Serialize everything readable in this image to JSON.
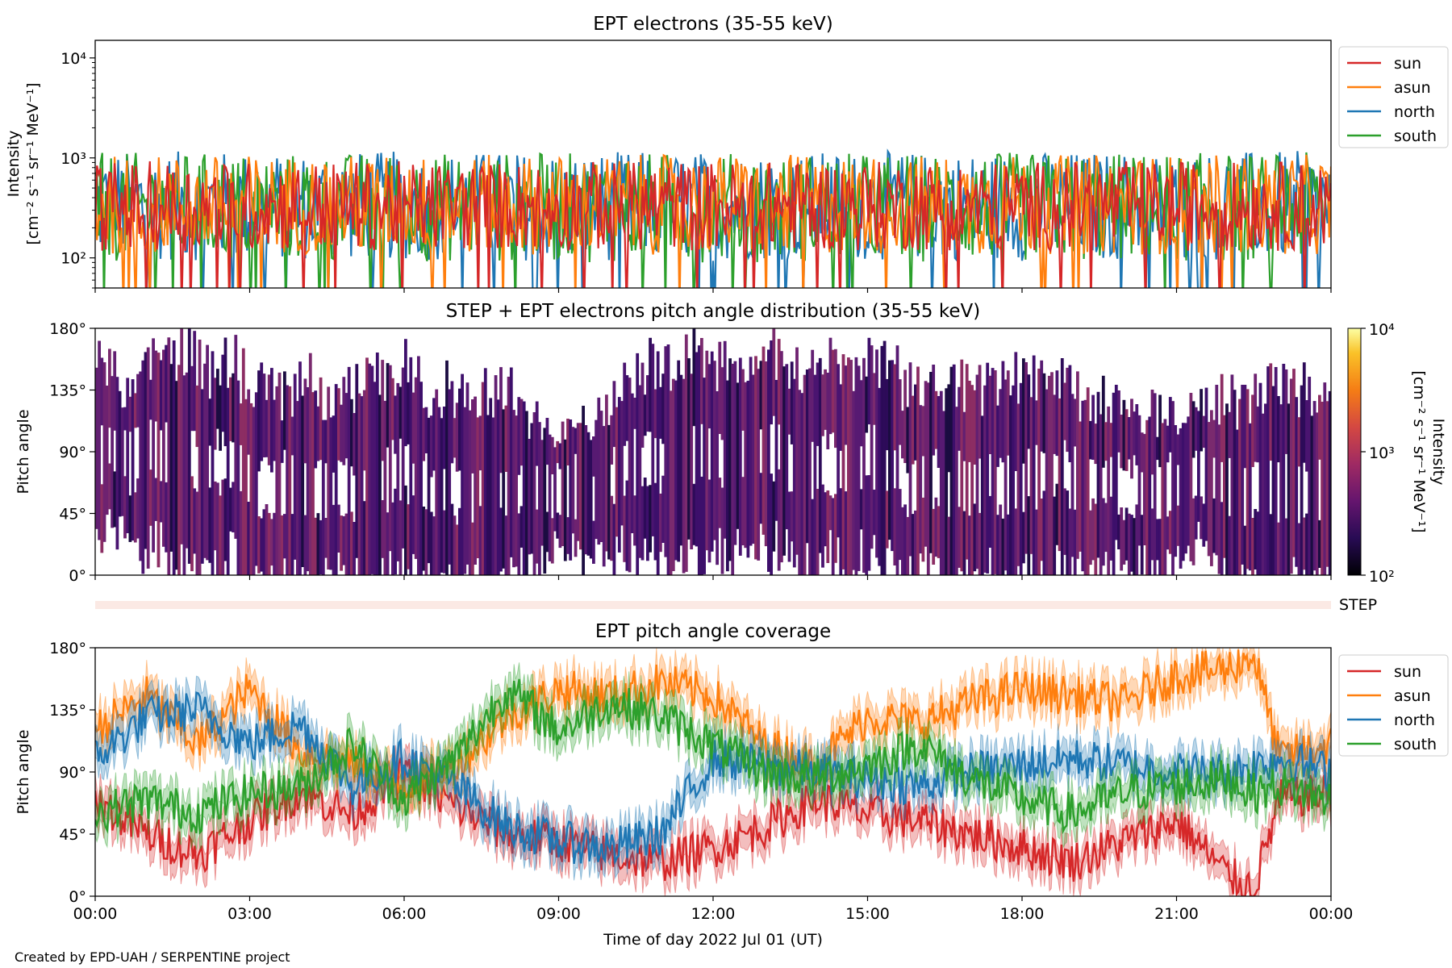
{
  "footer": "Created by EPD-UAH / SERPENTINE project",
  "colors": {
    "sun": "#d62728",
    "asun": "#ff7f0e",
    "north": "#1f77b4",
    "south": "#2ca02c",
    "heat": "#4a1470"
  },
  "chart_data": [
    {
      "type": "line",
      "title": "EPT electrons (35-55 keV)",
      "ylabel": [
        "Intensity",
        "[cm⁻² s⁻¹ sr⁻¹ MeV⁻¹]"
      ],
      "yscale": "log",
      "ylim": [
        50,
        15000
      ],
      "yticks": [
        "10²",
        "10³",
        "10⁴"
      ],
      "xlim": [
        0,
        24
      ],
      "legend": {
        "position": "right-outside-top",
        "entries": [
          "sun",
          "asun",
          "north",
          "south"
        ]
      },
      "series": [
        {
          "name": "north",
          "level": 330,
          "spread": 0.55
        },
        {
          "name": "south",
          "level": 320,
          "spread": 0.55
        },
        {
          "name": "asun",
          "level": 340,
          "spread": 0.5
        },
        {
          "name": "sun",
          "level": 330,
          "spread": 0.45
        }
      ]
    },
    {
      "type": "heatmap",
      "title": "STEP + EPT electrons pitch angle distribution (35-55 keV)",
      "ylabel": "Pitch angle",
      "ylim": [
        0,
        180
      ],
      "yticks": [
        "0°",
        "45°",
        "90°",
        "135°",
        "180°"
      ],
      "xlim": [
        0,
        24
      ],
      "colorbar": {
        "label": [
          "Intensity",
          "[cm⁻² s⁻¹ sr⁻¹ MeV⁻¹]"
        ],
        "scale": "log",
        "range": [
          100,
          10000
        ],
        "ticks": [
          "10²",
          "10³",
          "10⁴"
        ],
        "colormap": "inferno"
      },
      "step_label": "STEP"
    },
    {
      "type": "line",
      "title": "EPT pitch angle coverage",
      "ylabel": "Pitch angle",
      "xlabel": "Time of day 2022 Jul 01 (UT)",
      "ylim": [
        0,
        180
      ],
      "yticks": [
        "0°",
        "45°",
        "90°",
        "135°",
        "180°"
      ],
      "xlim": [
        0,
        24
      ],
      "xticks": [
        "00:00",
        "03:00",
        "06:00",
        "09:00",
        "12:00",
        "15:00",
        "18:00",
        "21:00",
        "00:00"
      ],
      "legend": {
        "position": "right-outside-top",
        "entries": [
          "sun",
          "asun",
          "north",
          "south"
        ]
      },
      "series": [
        {
          "name": "sun",
          "x": [
            0,
            1,
            2,
            3,
            4,
            5,
            6,
            7,
            8,
            9,
            10,
            11,
            12,
            13,
            14,
            15,
            16,
            17,
            18,
            19,
            20,
            21,
            22,
            22.5,
            23,
            24
          ],
          "y": [
            70,
            45,
            30,
            55,
            75,
            60,
            88,
            65,
            45,
            40,
            30,
            25,
            35,
            50,
            70,
            60,
            55,
            45,
            35,
            25,
            40,
            55,
            15,
            5,
            70,
            75
          ]
        },
        {
          "name": "asun",
          "x": [
            0,
            1,
            2,
            3,
            4,
            5,
            6,
            7,
            8,
            9,
            10,
            11,
            12,
            13,
            14,
            15,
            16,
            17,
            18,
            19,
            20,
            21,
            22,
            22.5,
            23,
            24
          ],
          "y": [
            120,
            145,
            110,
            150,
            105,
            95,
            80,
            95,
            130,
            150,
            145,
            155,
            145,
            110,
            95,
            130,
            125,
            140,
            150,
            145,
            140,
            160,
            165,
            175,
            100,
            110
          ]
        },
        {
          "name": "north",
          "x": [
            0,
            1,
            2,
            3,
            4,
            5,
            6,
            7,
            8,
            9,
            10,
            11,
            12,
            13,
            14,
            15,
            16,
            17,
            18,
            19,
            20,
            21,
            22,
            22.5,
            23,
            24
          ],
          "y": [
            100,
            130,
            135,
            110,
            125,
            80,
            100,
            80,
            50,
            40,
            35,
            45,
            100,
            95,
            90,
            85,
            80,
            90,
            95,
            100,
            95,
            90,
            90,
            95,
            100,
            90
          ]
        },
        {
          "name": "south",
          "x": [
            0,
            1,
            2,
            3,
            4,
            5,
            6,
            7,
            8,
            9,
            10,
            11,
            12,
            13,
            14,
            15,
            16,
            17,
            18,
            19,
            20,
            21,
            22,
            22.5,
            23,
            24
          ],
          "y": [
            60,
            70,
            60,
            75,
            80,
            110,
            70,
            100,
            150,
            120,
            140,
            130,
            110,
            90,
            85,
            95,
            110,
            85,
            70,
            60,
            75,
            80,
            85,
            75,
            80,
            70
          ]
        }
      ]
    }
  ]
}
